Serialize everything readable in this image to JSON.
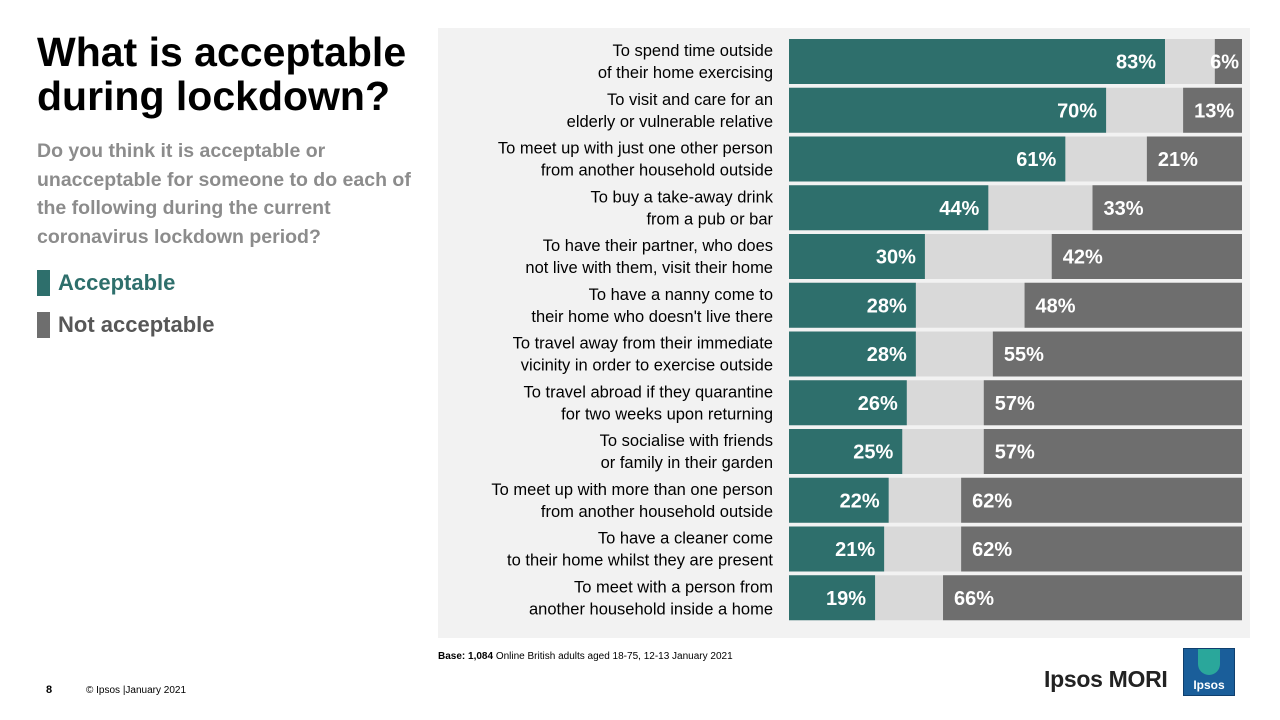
{
  "slide": {
    "title": "What is acceptable during lockdown?",
    "subtitle": "Do you think it is acceptable or unacceptable for someone to do each of the following  during the current coronavirus lockdown period?",
    "page_number": "8",
    "copyright": "© Ipsos |January 2021",
    "brand": "Ipsos MORI",
    "logo_text": "Ipsos"
  },
  "legend": {
    "acceptable": "Acceptable",
    "not_acceptable": "Not acceptable"
  },
  "footnote": {
    "label": "Base: 1,084",
    "text": " Online British adults aged 18-75, 12-13 January 2021"
  },
  "colors": {
    "acceptable": "#2e6f6c",
    "neither": "#d9d9d9",
    "not_acceptable": "#6e6e6e",
    "label_text": "#000000",
    "value_text": "#ffffff"
  },
  "chart_data": {
    "type": "bar",
    "orientation": "horizontal-stacked-100",
    "categories": [
      "To spend time outside\nof their home exercising",
      "To visit and care for an\nelderly or vulnerable relative",
      "To meet up with just one other person\nfrom another household outside",
      "To buy a take-away drink\nfrom a pub or bar",
      "To have their partner, who does\nnot live with them, visit their home",
      "To have a nanny come to\ntheir home who doesn't live there",
      "To travel away from their immediate\nvicinity in order to exercise outside",
      "To travel abroad if they quarantine\nfor two weeks upon returning",
      "To socialise with friends\nor family in their garden",
      "To meet up with more than one person\nfrom another household outside",
      "To have a cleaner come\nto their home whilst they are present",
      "To meet with a person from\nanother household inside a home"
    ],
    "series": [
      {
        "name": "Acceptable",
        "values": [
          83,
          70,
          61,
          44,
          30,
          28,
          28,
          26,
          25,
          22,
          21,
          19
        ]
      },
      {
        "name": "Not acceptable",
        "values": [
          6,
          13,
          21,
          33,
          42,
          48,
          55,
          57,
          57,
          62,
          62,
          66
        ]
      }
    ],
    "value_suffix": "%",
    "xlim": [
      0,
      100
    ],
    "grid": false
  }
}
